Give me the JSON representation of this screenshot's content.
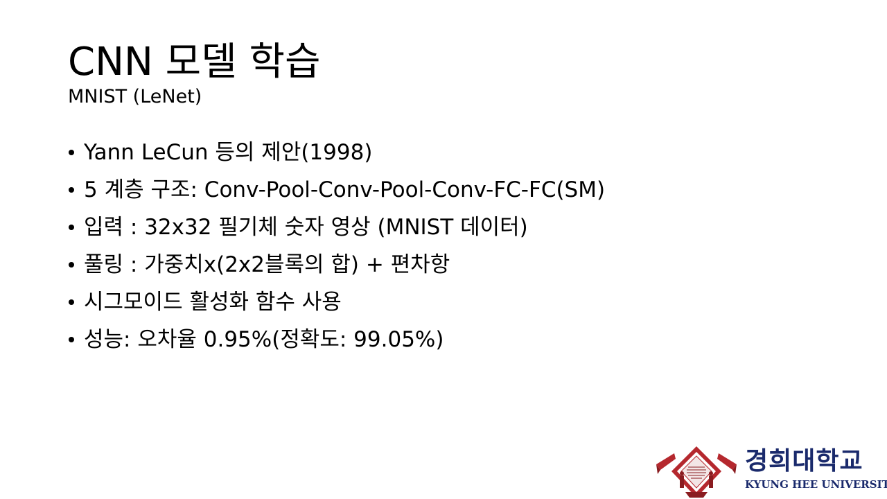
{
  "slide": {
    "title": "CNN 모델 학습",
    "subtitle": "MNIST (LeNet)",
    "bullets": [
      "Yann LeCun 등의 제안(1998)",
      "5 계층 구조: Conv-Pool-Conv-Pool-Conv-FC-FC(SM)",
      "입력 : 32x32 필기체 숫자 영상 (MNIST 데이터)",
      "풀링 : 가중치x(2x2블록의 합) + 편차항",
      "시그모이드 활성화 함수 사용",
      "성능: 오차율 0.95%(정확도: 99.05%)"
    ]
  },
  "logo": {
    "name_ko": "경희대학교",
    "name_en": "KYUNG HEE UNIVERSITY",
    "primary_color": "#1a2a6c",
    "emblem_color": "#b5282e",
    "emblem_icon": "university-emblem-icon"
  }
}
